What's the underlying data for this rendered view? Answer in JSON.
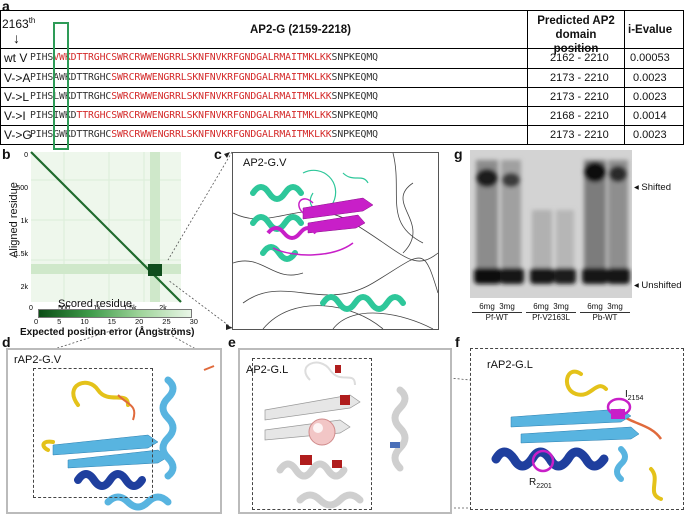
{
  "panel_labels": {
    "a": "a",
    "b": "b",
    "c": "c",
    "d": "d",
    "e": "e",
    "f": "f",
    "g": "g"
  },
  "table": {
    "position_marker": "2163",
    "position_marker_sup": "th",
    "arrow": "↓",
    "headers": {
      "sequence": "AP2-G (2159-2218)",
      "domain": "Predicted AP2 domain position",
      "evalue": "i-Evalue"
    },
    "rows": [
      {
        "label": "wt V",
        "prefix": "PIHS",
        "mut": "V",
        "seq": "WKDTTRGHCSWRCRWWENGRRLSKNFNVKRFGNDGALRMAITMKLKK",
        "suffix": "SNPKEQMQ",
        "mut_red": true,
        "domain": "2162 - 2210",
        "evalue": "0.00053"
      },
      {
        "label": "V->A",
        "prefix": "PIHS",
        "mut": "A",
        "seq": "WKDTTRGHC",
        "seq2": "SWRCRWWENGRRLSKNFNVKRFGNDGALRMAITMKLKK",
        "suffix": "SNPKEQMQ",
        "mut_red": false,
        "domain": "2173 - 2210",
        "evalue": "0.0023"
      },
      {
        "label": "V->L",
        "prefix": "PIHS",
        "mut": "L",
        "seq": "WKDTTRGHC",
        "seq2": "SWRCRWWENGRRLSKNFNVKRFGNDGALRMAITMKLKK",
        "suffix": "SNPKEQMQ",
        "mut_red": false,
        "domain": "2173 - 2210",
        "evalue": "0.0023"
      },
      {
        "label": "V->I",
        "prefix": "PIHS",
        "mut": "I",
        "seq": "WKD",
        "seq2": "TTRGHCSWRCRWWENGRRLSKNFNVKRFGNDGALRMAITMKLKK",
        "suffix": "SNPKEQMQ",
        "mut_red": false,
        "domain": "2168 - 2210",
        "evalue": "0.0014"
      },
      {
        "label": "V->G",
        "prefix": "PIHS",
        "mut": "G",
        "seq": "WKDTTRGHC",
        "seq2": "SWRCRWWENGRRLSKNFNVKRFGNDGALRMAITMKLKK",
        "suffix": "SNPKEQMQ",
        "mut_red": false,
        "domain": "2173 - 2210",
        "evalue": "0.0023"
      }
    ]
  },
  "heatmap": {
    "ylabel": "Aligned residue",
    "xlabel": "Scored residue",
    "y_ticks": [
      "0",
      "500",
      "1k",
      "1.5k",
      "2k"
    ],
    "x_ticks": [
      "0",
      "500",
      "1k",
      "1.5k",
      "2k"
    ],
    "colorbar_ticks": [
      "0",
      "5",
      "10",
      "15",
      "20",
      "25",
      "30"
    ],
    "colorbar_label": "Expected position error (Ångströms)"
  },
  "structures": {
    "c_title": "AP2-G.V",
    "d_title": "rAP2-G.V",
    "e_title": "AP2-G.L",
    "f_title": "rAP2-G.L",
    "f_label1": "I",
    "f_label1_sub": "2154",
    "f_label2": "R",
    "f_label2_sub": "2201"
  },
  "gel": {
    "shifted": "Shifted",
    "unshifted": "Unshifted",
    "lanes": [
      {
        "dose1": "6mg",
        "dose2": "3mg",
        "name": "Pf-WT"
      },
      {
        "dose1": "6mg",
        "dose2": "3mg",
        "name": "Pf-V2163L"
      },
      {
        "dose1": "6mg",
        "dose2": "3mg",
        "name": "Pb-WT"
      }
    ]
  },
  "colors": {
    "red": "#d42a2a",
    "green_box": "#2e9b57",
    "teal": "#2ec79a",
    "magenta": "#c81fc8",
    "dark_blue": "#1f3f9e",
    "light_blue": "#58b4e0",
    "yellow": "#e4c21a"
  }
}
